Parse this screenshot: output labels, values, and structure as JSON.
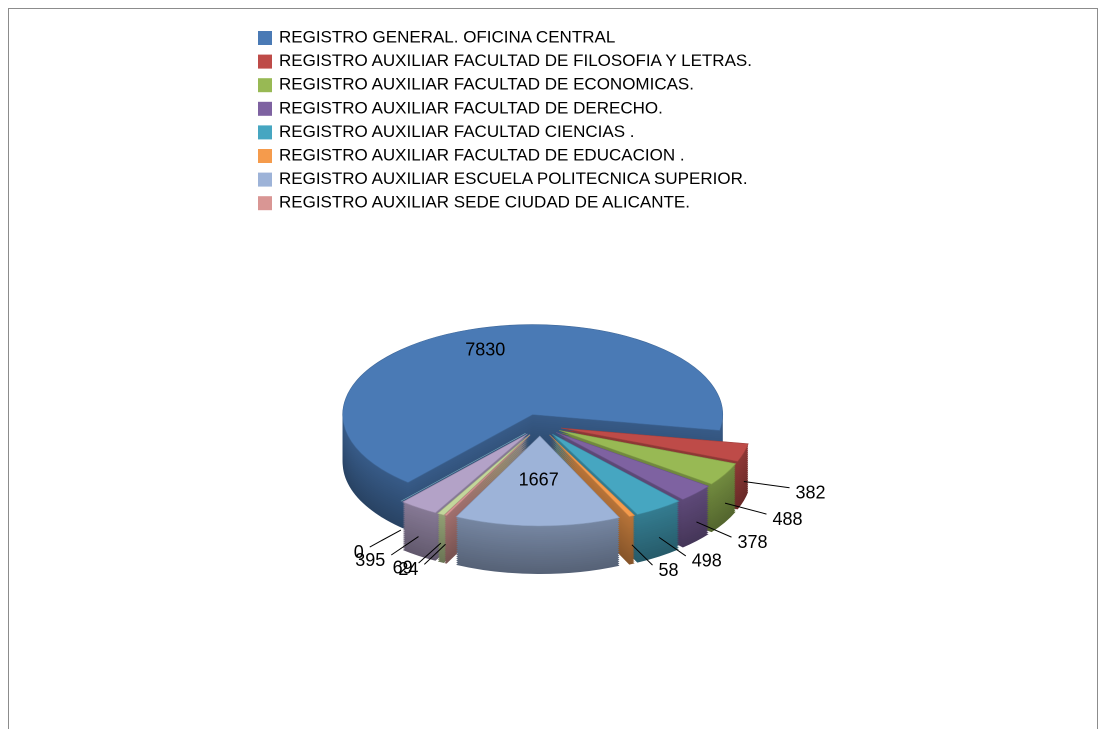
{
  "chart_data": {
    "type": "pie",
    "categories": [
      "REGISTRO GENERAL. OFICINA CENTRAL",
      "REGISTRO AUXILIAR FACULTAD DE FILOSOFIA Y LETRAS.",
      "REGISTRO AUXILIAR FACULTAD DE ECONOMICAS.",
      "REGISTRO AUXILIAR FACULTAD DE DERECHO.",
      "REGISTRO AUXILIAR FACULTAD CIENCIAS .",
      "REGISTRO AUXILIAR FACULTAD DE EDUCACION .",
      "REGISTRO AUXILIAR ESCUELA POLITECNICA SUPERIOR.",
      "REGISTRO AUXILIAR SEDE CIUDAD DE ALICANTE.",
      null,
      null,
      null
    ],
    "values": [
      7830,
      382,
      488,
      378,
      498,
      58,
      1667,
      24,
      69,
      395,
      0
    ],
    "colors": [
      "#4a7ab5",
      "#be4b48",
      "#98b954",
      "#7e62a1",
      "#46a6c1",
      "#f59b4c",
      "#9db3d8",
      "#d99694",
      "#c3d69b",
      "#b3a2c7",
      "#93cddd"
    ],
    "legend": "top"
  }
}
